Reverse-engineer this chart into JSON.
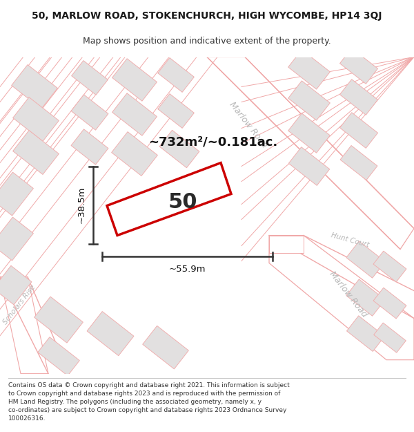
{
  "title_line1": "50, MARLOW ROAD, STOKENCHURCH, HIGH WYCOMBE, HP14 3QJ",
  "title_line2": "Map shows position and indicative extent of the property.",
  "footer": "Contains OS data © Crown copyright and database right 2021. This information is subject\nto Crown copyright and database rights 2023 and is reproduced with the permission of\nHM Land Registry. The polygons (including the associated geometry, namely x, y\nco-ordinates) are subject to Crown copyright and database rights 2023 Ordnance Survey\n100026316.",
  "map_bg": "#f7f5f5",
  "plot_color": "#cc0000",
  "building_fill": "#e2e0e0",
  "building_stroke": "#f0b0b0",
  "road_stroke": "#f0a8a8",
  "road_label_color": "#b8b8b8",
  "area_text": "~732m²/~0.181ac.",
  "dim_width": "~55.9m",
  "dim_height": "~38.5m",
  "plot_number": "50",
  "title_fontsize": 10,
  "subtitle_fontsize": 9,
  "footer_fontsize": 6.5
}
